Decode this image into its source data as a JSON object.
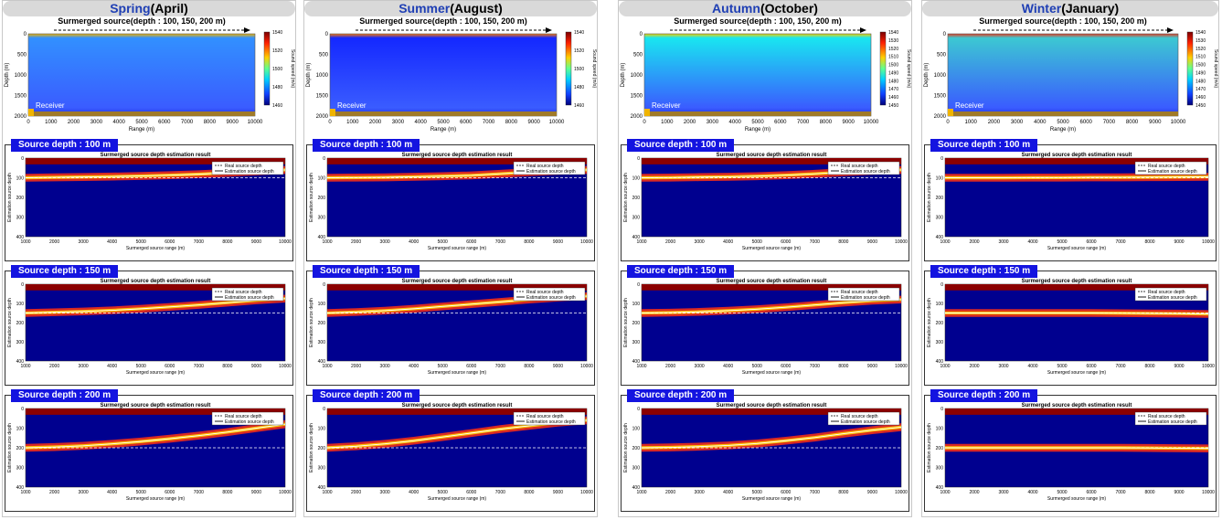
{
  "colors": {
    "title_bar": "#d9d9d9",
    "season_name": "#1f3fb4",
    "label_bg": "#1414e0",
    "label_text": "#ffffff",
    "ocean_deep": "#00008f",
    "surface_red": "#8b0000"
  },
  "seasons": [
    {
      "name": "Spring",
      "period": "(April)",
      "water": "#3290ff",
      "surface": "#f0b400"
    },
    {
      "name": "Summer",
      "period": "(August)",
      "water": "#1428ff",
      "surface": "#ff7800"
    },
    {
      "name": "Autumn",
      "period": "(October)",
      "water": "#19e6f0",
      "surface": "#f0d200"
    },
    {
      "name": "Winter",
      "period": "(January)",
      "water": "#3cc8d2",
      "surface": "#e63c1e"
    }
  ],
  "ssp": {
    "header": "Surmerged source(depth : 100, 150, 200 m)",
    "ylabel": "Depth (m)",
    "xlabel": "Range (m)",
    "receiver": "Receiver",
    "cbar_label": "Sound speed (m/s)",
    "x_ticks": [
      "0",
      "1000",
      "2000",
      "3000",
      "4000",
      "5000",
      "6000",
      "7000",
      "8000",
      "9000",
      "10000"
    ],
    "y_ticks": [
      "0",
      "500",
      "1000",
      "1500",
      "2000"
    ],
    "cbar_ticks_by_season": [
      [
        "1540",
        "1520",
        "1500",
        "1480",
        "1460"
      ],
      [
        "1540",
        "1520",
        "1500",
        "1480",
        "1460"
      ],
      [
        "1540",
        "1530",
        "1520",
        "1510",
        "1500",
        "1490",
        "1480",
        "1470",
        "1460",
        "1450"
      ],
      [
        "1540",
        "1530",
        "1520",
        "1510",
        "1500",
        "1490",
        "1480",
        "1470",
        "1460",
        "1450"
      ]
    ]
  },
  "est": {
    "title": "Surmerged source depth estimation result",
    "xlabel": "Surmerged source range (m)",
    "ylabel": "Estimation source depth",
    "legend": [
      "Real source depth",
      "Estimation source depth"
    ],
    "x_ticks": [
      "1000",
      "2000",
      "3000",
      "4000",
      "5000",
      "6000",
      "7000",
      "8000",
      "9000",
      "10000"
    ],
    "y_ticks": [
      "0",
      "100",
      "200",
      "300",
      "400"
    ]
  },
  "chart_data": [
    {
      "type": "heatmap",
      "panel": "Sound speed profile",
      "season": "Spring(April)",
      "xlabel": "Range (m)",
      "ylabel": "Depth (m)",
      "xlim": [
        0,
        10000
      ],
      "ylim": [
        0,
        2000
      ],
      "colorbar": "Sound speed (m/s)",
      "colorbar_range": [
        1460,
        1540
      ]
    },
    {
      "type": "heatmap",
      "panel": "Sound speed profile",
      "season": "Summer(August)",
      "xlabel": "Range (m)",
      "ylabel": "Depth (m)",
      "xlim": [
        0,
        10000
      ],
      "ylim": [
        0,
        2000
      ],
      "colorbar": "Sound speed (m/s)",
      "colorbar_range": [
        1460,
        1540
      ]
    },
    {
      "type": "heatmap",
      "panel": "Sound speed profile",
      "season": "Autumn(October)",
      "xlabel": "Range (m)",
      "ylabel": "Depth (m)",
      "xlim": [
        0,
        10000
      ],
      "ylim": [
        0,
        2000
      ],
      "colorbar": "Sound speed (m/s)",
      "colorbar_range": [
        1450,
        1540
      ]
    },
    {
      "type": "heatmap",
      "panel": "Sound speed profile",
      "season": "Winter(January)",
      "xlabel": "Range (m)",
      "ylabel": "Depth (m)",
      "xlim": [
        0,
        10000
      ],
      "ylim": [
        0,
        2000
      ],
      "colorbar": "Sound speed (m/s)",
      "colorbar_range": [
        1450,
        1540
      ]
    },
    {
      "type": "line",
      "title": "Surmerged source depth estimation result",
      "series_names": [
        "Real source depth",
        "Estimation source depth"
      ],
      "xlim": [
        1000,
        10000
      ],
      "ylim": [
        400,
        0
      ],
      "panels": [
        {
          "season": "Spring",
          "source_depth": 100,
          "estimated_x": [
            1000,
            2000,
            3000,
            4000,
            5000,
            6000,
            7000,
            8000,
            9000,
            10000
          ],
          "estimated_y": [
            100,
            98,
            96,
            94,
            91,
            87,
            82,
            75,
            68,
            60
          ]
        },
        {
          "season": "Spring",
          "source_depth": 150,
          "estimated_x": [
            1000,
            2000,
            3000,
            4000,
            5000,
            6000,
            7000,
            8000,
            9000,
            10000
          ],
          "estimated_y": [
            150,
            146,
            142,
            136,
            128,
            118,
            108,
            96,
            84,
            75
          ]
        },
        {
          "season": "Spring",
          "source_depth": 200,
          "estimated_x": [
            1000,
            2000,
            3000,
            4000,
            5000,
            6000,
            7000,
            8000,
            9000,
            10000
          ],
          "estimated_y": [
            200,
            196,
            190,
            180,
            168,
            154,
            138,
            120,
            100,
            80
          ]
        },
        {
          "season": "Summer",
          "source_depth": 100,
          "estimated_x": [
            1000,
            2000,
            3000,
            4000,
            5000,
            6000,
            7000,
            8000,
            9000,
            10000
          ],
          "estimated_y": [
            100,
            99,
            98,
            95,
            92,
            88,
            80,
            72,
            65,
            60
          ]
        },
        {
          "season": "Summer",
          "source_depth": 150,
          "estimated_x": [
            1000,
            2000,
            3000,
            4000,
            5000,
            6000,
            7000,
            8000,
            9000,
            10000
          ],
          "estimated_y": [
            150,
            145,
            138,
            128,
            116,
            104,
            92,
            80,
            70,
            62
          ]
        },
        {
          "season": "Summer",
          "source_depth": 200,
          "estimated_x": [
            1000,
            2000,
            3000,
            4000,
            5000,
            6000,
            7000,
            8000,
            9000,
            10000
          ],
          "estimated_y": [
            200,
            192,
            180,
            164,
            145,
            125,
            105,
            88,
            72,
            60
          ]
        },
        {
          "season": "Autumn",
          "source_depth": 100,
          "estimated_x": [
            1000,
            2000,
            3000,
            4000,
            5000,
            6000,
            7000,
            8000,
            9000,
            10000
          ],
          "estimated_y": [
            100,
            99,
            97,
            95,
            92,
            87,
            80,
            72,
            65,
            60
          ]
        },
        {
          "season": "Autumn",
          "source_depth": 150,
          "estimated_x": [
            1000,
            2000,
            3000,
            4000,
            5000,
            6000,
            7000,
            8000,
            9000,
            10000
          ],
          "estimated_y": [
            150,
            148,
            144,
            138,
            130,
            120,
            108,
            96,
            86,
            80
          ]
        },
        {
          "season": "Autumn",
          "source_depth": 200,
          "estimated_x": [
            1000,
            2000,
            3000,
            4000,
            5000,
            6000,
            7000,
            8000,
            9000,
            10000
          ],
          "estimated_y": [
            200,
            198,
            194,
            188,
            178,
            164,
            148,
            128,
            110,
            95
          ]
        },
        {
          "season": "Winter",
          "source_depth": 100,
          "estimated_x": [
            1000,
            2000,
            3000,
            4000,
            5000,
            6000,
            7000,
            8000,
            9000,
            10000
          ],
          "estimated_y": [
            100,
            100,
            100,
            99,
            99,
            98,
            98,
            97,
            96,
            95
          ]
        },
        {
          "season": "Winter",
          "source_depth": 150,
          "estimated_x": [
            1000,
            2000,
            3000,
            4000,
            5000,
            6000,
            7000,
            8000,
            9000,
            10000
          ],
          "estimated_y": [
            150,
            150,
            150,
            150,
            150,
            150,
            151,
            152,
            153,
            155
          ]
        },
        {
          "season": "Winter",
          "source_depth": 200,
          "estimated_x": [
            1000,
            2000,
            3000,
            4000,
            5000,
            6000,
            7000,
            8000,
            9000,
            10000
          ],
          "estimated_y": [
            200,
            200,
            200,
            200,
            200,
            200,
            200,
            201,
            202,
            203
          ]
        }
      ]
    }
  ],
  "depth_blocks": [
    {
      "label": "Source depth : 100 m",
      "depth": 100
    },
    {
      "label": "Source depth : 150 m",
      "depth": 150
    },
    {
      "label": "Source depth : 200 m",
      "depth": 200
    }
  ]
}
